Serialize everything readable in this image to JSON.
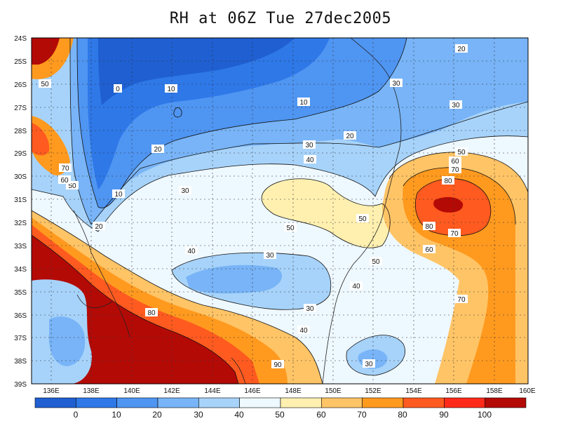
{
  "title": "RH at 06Z Tue 27dec2005",
  "axes": {
    "lat_labels": [
      "24S",
      "25S",
      "26S",
      "27S",
      "28S",
      "29S",
      "30S",
      "31S",
      "32S",
      "33S",
      "34S",
      "35S",
      "36S",
      "37S",
      "38S",
      "39S"
    ],
    "lon_labels": [
      "136E",
      "138E",
      "140E",
      "142E",
      "144E",
      "146E",
      "148E",
      "150E",
      "152E",
      "154E",
      "156E",
      "158E",
      "160E"
    ]
  },
  "colorbar": {
    "labels": [
      "0",
      "10",
      "20",
      "30",
      "40",
      "50",
      "60",
      "70",
      "80",
      "90",
      "100"
    ],
    "colors": [
      "#1f5fd1",
      "#2e78e8",
      "#4f95f2",
      "#78b4f7",
      "#a7d3fa",
      "#eef8ff",
      "#fff0b0",
      "#ffc466",
      "#ff9a1f",
      "#ff5a1f",
      "#ff2a1a",
      "#b40a06"
    ]
  },
  "contour_labels": [
    "0",
    "10",
    "10",
    "10",
    "20",
    "20",
    "20",
    "20",
    "30",
    "30",
    "30",
    "30",
    "30",
    "30",
    "30",
    "40",
    "40",
    "40",
    "40",
    "50",
    "50",
    "50",
    "50",
    "50",
    "50",
    "60",
    "60",
    "60",
    "70",
    "70",
    "70",
    "70",
    "80",
    "80",
    "80",
    "90"
  ]
}
